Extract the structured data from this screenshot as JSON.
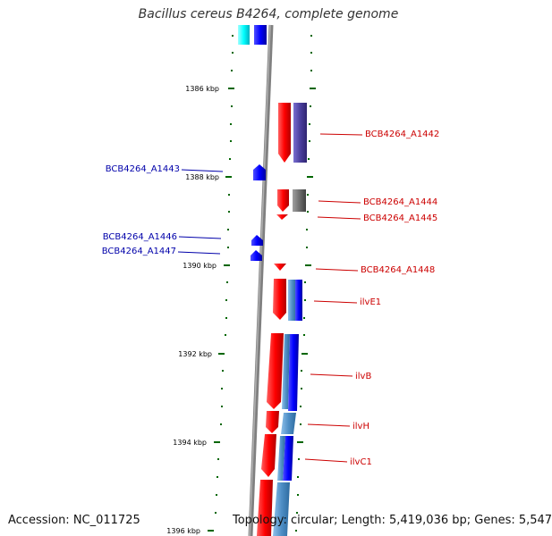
{
  "title": "Bacillus cereus B4264, complete genome",
  "footer": {
    "accession": "Accession: NC_011725",
    "topology": "Topology: circular; Length: 5,419,036 bp; Genes: 5,547"
  },
  "axis_labels": [
    "1386 kbp",
    "1388 kbp",
    "1390 kbp",
    "1392 kbp",
    "1394 kbp",
    "1396 kbp"
  ],
  "gene_labels": {
    "left": [
      "BCB4264_A1443",
      "BCB4264_A1446",
      "BCB4264_A1447"
    ],
    "right": [
      "BCB4264_A1442",
      "BCB4264_A1444",
      "BCB4264_A1445",
      "BCB4264_A1448",
      "ilvE1",
      "ilvB",
      "ilvH",
      "ilvC1"
    ]
  },
  "colors": {
    "backbone": "#808080",
    "forward_gene": "#ff0000",
    "reverse_gene": "#0000ff",
    "left_label": "#0000aa",
    "right_label": "#cc0000",
    "tick": "#006600",
    "cyan": "#00ffff",
    "purple": "#4b3f9e",
    "steel": "#4f8fc6",
    "gray_block": "#707070"
  }
}
